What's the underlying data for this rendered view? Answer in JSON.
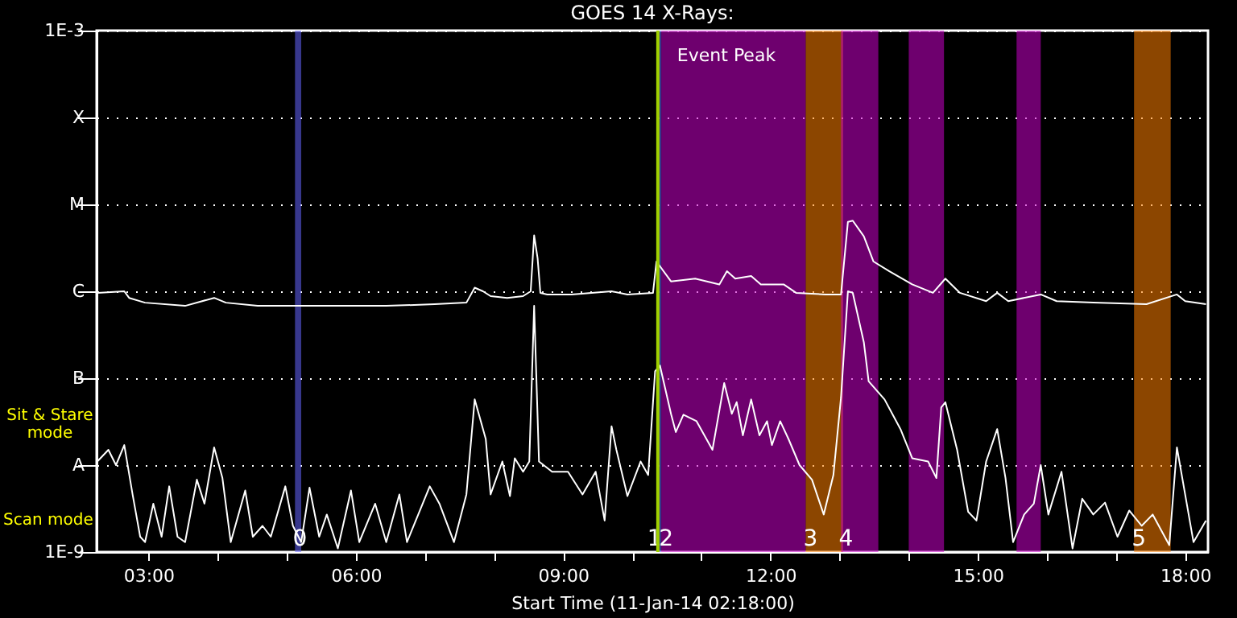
{
  "chart_data": {
    "type": "line",
    "title": "GOES 14 X-Rays:",
    "xlabel": "Start Time (11-Jan-14 02:18:00)",
    "annotations": [
      "Sit & Stare mode",
      "Scan mode"
    ],
    "xlim": [
      2.25,
      18.33
    ],
    "xticks": [
      {
        "value": 3,
        "label": "03:00"
      },
      {
        "value": 4,
        "label": null
      },
      {
        "value": 5,
        "label": null
      },
      {
        "value": 6,
        "label": "06:00"
      },
      {
        "value": 7,
        "label": null
      },
      {
        "value": 8,
        "label": null
      },
      {
        "value": 9,
        "label": "09:00"
      },
      {
        "value": 10,
        "label": null
      },
      {
        "value": 11,
        "label": null
      },
      {
        "value": 12,
        "label": "12:00"
      },
      {
        "value": 13,
        "label": null
      },
      {
        "value": 14,
        "label": null
      },
      {
        "value": 15,
        "label": "15:00"
      },
      {
        "value": 16,
        "label": null
      },
      {
        "value": 17,
        "label": null
      },
      {
        "value": 18,
        "label": "18:00"
      }
    ],
    "ylim": [
      1e-09,
      0.001
    ],
    "log": "y",
    "yticks": [
      {
        "value": 1e-09,
        "label": "1E-9"
      },
      {
        "value": 1e-08,
        "label": "A"
      },
      {
        "value": 1e-07,
        "label": "B"
      },
      {
        "value": 1e-06,
        "label": "C"
      },
      {
        "value": 1e-05,
        "label": "M"
      },
      {
        "value": 0.0001,
        "label": "X"
      },
      {
        "value": 0.001,
        "label": "1E-3"
      }
    ],
    "grid": "y",
    "ref_lines": [
      {
        "axis": "x",
        "value": 10.37,
        "label": "Event Peak",
        "color": "#a0d000"
      }
    ],
    "bands": [
      {
        "axis": "x",
        "from": 5.12,
        "to": 5.21,
        "label": "0",
        "color": "#6464ff"
      },
      {
        "axis": "x",
        "from": 10.37,
        "to": 10.42,
        "label": "1",
        "color": "#6464ff"
      },
      {
        "axis": "x",
        "from": 10.42,
        "to": 12.51,
        "label": "2",
        "color": "#c800c8"
      },
      {
        "axis": "x",
        "from": 12.51,
        "to": 13.05,
        "label": "3",
        "color": "#ff8000"
      },
      {
        "axis": "x",
        "from": 13.02,
        "to": 13.56,
        "label": "4",
        "color": "#c800c8"
      },
      {
        "axis": "x",
        "from": 14.0,
        "to": 14.51,
        "color": "#c800c8"
      },
      {
        "axis": "x",
        "from": 15.56,
        "to": 15.91,
        "color": "#c800c8"
      },
      {
        "axis": "x",
        "from": 17.26,
        "to": 17.79,
        "label": "5",
        "color": "#ff8000"
      }
    ],
    "series": [
      {
        "color": "#ffffff",
        "x": [
          2.26,
          2.65,
          2.72,
          2.95,
          3.53,
          3.95,
          4.12,
          4.58,
          5.51,
          6.44,
          7.14,
          7.6,
          7.72,
          7.84,
          7.95,
          8.19,
          8.42,
          8.53,
          8.58,
          8.63,
          8.67,
          8.77,
          9.12,
          9.7,
          9.93,
          10.3,
          10.35,
          10.56,
          10.91,
          11.26,
          11.37,
          11.49,
          11.72,
          11.86,
          12.19,
          12.37,
          12.79,
          13.02,
          13.12,
          13.19,
          13.35,
          13.49,
          13.72,
          14.05,
          14.35,
          14.53,
          14.74,
          15.12,
          15.28,
          15.44,
          15.91,
          16.14,
          16.67,
          17.44,
          17.88,
          18.0,
          18.3
        ],
        "values": [
          9.6e-07,
          1e-06,
          8.4e-07,
          7.4e-07,
          6.8e-07,
          8.4e-07,
          7.4e-07,
          6.8e-07,
          6.8e-07,
          6.8e-07,
          7.1e-07,
          7.4e-07,
          1.1e-06,
          1e-06,
          8.8e-07,
          8.4e-07,
          8.8e-07,
          1e-06,
          4.4e-06,
          2.4e-06,
          9.6e-07,
          9.2e-07,
          9.2e-07,
          1e-06,
          9.2e-07,
          9.6e-07,
          2.2e-06,
          1.3e-06,
          1.4e-06,
          1.2e-06,
          1.7e-06,
          1.4e-06,
          1.5e-06,
          1.2e-06,
          1.2e-06,
          9.6e-07,
          9.2e-07,
          9.2e-07,
          6.3e-06,
          6.5e-06,
          4.3e-06,
          2.2e-06,
          1.7e-06,
          1.2e-06,
          9.6e-07,
          1.4e-06,
          9.6e-07,
          7.7e-07,
          9.6e-07,
          7.7e-07,
          9.2e-07,
          7.7e-07,
          7.4e-07,
          7.1e-07,
          9.2e-07,
          7.7e-07,
          7.1e-07
        ]
      },
      {
        "color": "#ffffff",
        "x": [
          2.26,
          2.42,
          2.53,
          2.65,
          2.77,
          2.88,
          2.95,
          3.07,
          3.19,
          3.3,
          3.42,
          3.53,
          3.7,
          3.81,
          3.95,
          4.07,
          4.19,
          4.4,
          4.51,
          4.65,
          4.77,
          4.98,
          5.09,
          5.21,
          5.33,
          5.47,
          5.58,
          5.74,
          5.93,
          6.05,
          6.28,
          6.44,
          6.63,
          6.74,
          7.07,
          7.21,
          7.42,
          7.6,
          7.72,
          7.88,
          7.95,
          8.12,
          8.23,
          8.3,
          8.42,
          8.51,
          8.58,
          8.65,
          8.84,
          9.07,
          9.28,
          9.47,
          9.6,
          9.7,
          9.77,
          9.93,
          10.12,
          10.23,
          10.33,
          10.4,
          10.56,
          10.63,
          10.74,
          10.93,
          11.16,
          11.33,
          11.44,
          11.51,
          11.6,
          11.72,
          11.84,
          11.95,
          12.02,
          12.14,
          12.26,
          12.42,
          12.6,
          12.77,
          12.91,
          13.02,
          13.12,
          13.19,
          13.35,
          13.42,
          13.65,
          13.88,
          14.05,
          14.28,
          14.4,
          14.47,
          14.53,
          14.7,
          14.86,
          14.98,
          15.12,
          15.28,
          15.4,
          15.51,
          15.67,
          15.81,
          15.91,
          16.02,
          16.21,
          16.37,
          16.51,
          16.67,
          16.84,
          17.02,
          17.19,
          17.37,
          17.53,
          17.77,
          17.88,
          18.02,
          18.12,
          18.3
        ],
        "values": [
          1.1e-08,
          1.5e-08,
          1e-08,
          1.7e-08,
          4.6e-09,
          1.5e-09,
          1.3e-09,
          3.6e-09,
          1.5e-09,
          5.7e-09,
          1.5e-09,
          1.3e-09,
          6.8e-09,
          3.6e-09,
          1.6e-08,
          7.1e-09,
          1.3e-09,
          5.1e-09,
          1.5e-09,
          2e-09,
          1.5e-09,
          5.7e-09,
          2e-09,
          1.3e-09,
          5.5e-09,
          1.5e-09,
          2.7e-09,
          1.1e-09,
          5.1e-09,
          1.3e-09,
          3.6e-09,
          1.3e-09,
          4.6e-09,
          1.3e-09,
          5.7e-09,
          3.6e-09,
          1.3e-09,
          4.6e-09,
          5.7e-08,
          2e-08,
          4.6e-09,
          1.1e-08,
          4.4e-09,
          1.2e-08,
          8.4e-09,
          1.1e-08,
          6.8e-07,
          1.1e-08,
          8.4e-09,
          8.4e-09,
          4.6e-09,
          8.4e-09,
          2.3e-09,
          2.8e-08,
          1.5e-08,
          4.4e-09,
          1.1e-08,
          7.7e-09,
          1.2e-07,
          1.4e-07,
          3.9e-08,
          2.4e-08,
          3.8e-08,
          3.2e-08,
          1.5e-08,
          8.8e-08,
          3.9e-08,
          5.3e-08,
          2.2e-08,
          5.7e-08,
          2.2e-08,
          3.2e-08,
          1.7e-08,
          3.2e-08,
          2e-08,
          1e-08,
          6.8e-09,
          2.7e-09,
          7.7e-09,
          6e-08,
          1e-06,
          9.6e-07,
          2.6e-07,
          9.2e-08,
          5.7e-08,
          2.6e-08,
          1.2e-08,
          1.1e-08,
          7.1e-09,
          4.6e-08,
          5.3e-08,
          1.5e-08,
          2.9e-09,
          2.3e-09,
          1.1e-08,
          2.6e-08,
          7.1e-09,
          1.3e-09,
          2.7e-09,
          3.6e-09,
          1e-08,
          2.7e-09,
          8.4e-09,
          1.1e-09,
          4.1e-09,
          2.7e-09,
          3.7e-09,
          1.5e-09,
          3e-09,
          2e-09,
          2.7e-09,
          1.2e-09,
          1.6e-08,
          3.7e-09,
          1.3e-09,
          2.3e-09
        ]
      }
    ]
  }
}
